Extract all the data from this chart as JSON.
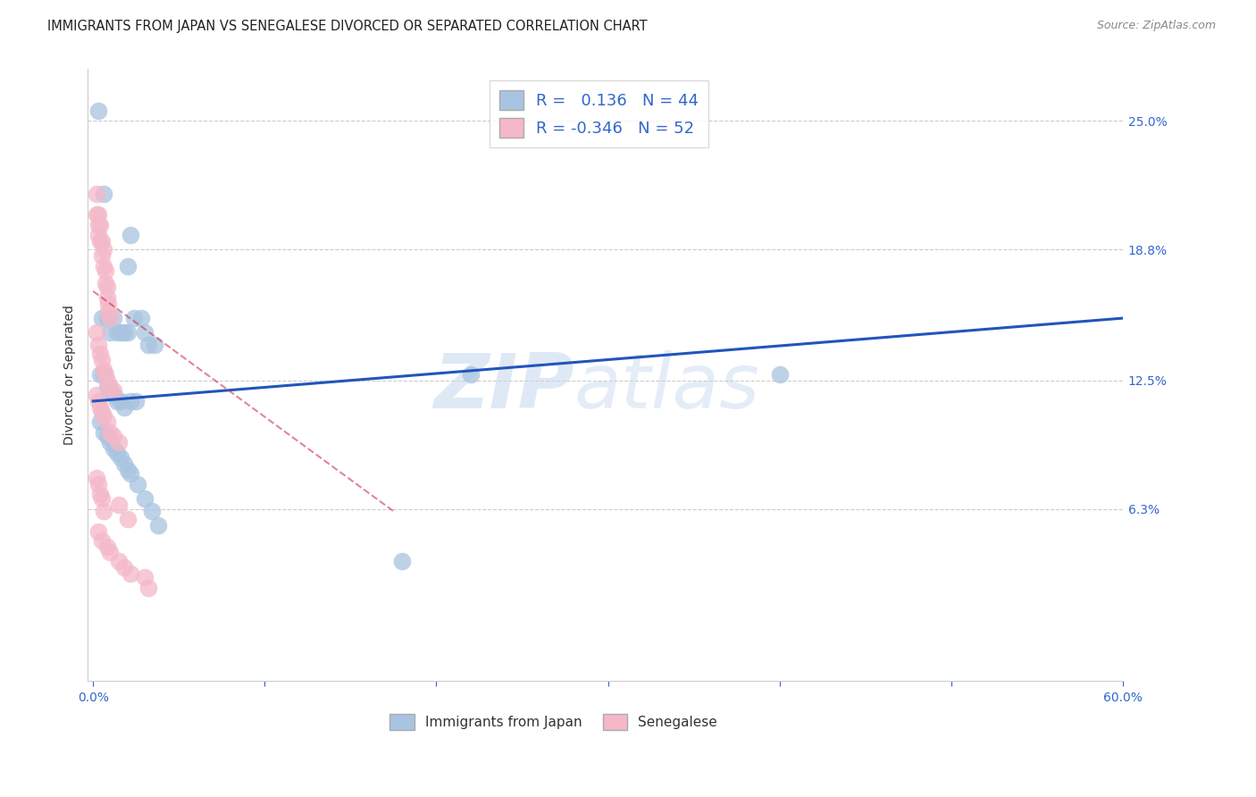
{
  "title": "IMMIGRANTS FROM JAPAN VS SENEGALESE DIVORCED OR SEPARATED CORRELATION CHART",
  "source": "Source: ZipAtlas.com",
  "ylabel": "Divorced or Separated",
  "ytick_labels": [
    "25.0%",
    "18.8%",
    "12.5%",
    "6.3%"
  ],
  "ytick_values": [
    0.25,
    0.188,
    0.125,
    0.063
  ],
  "xlim": [
    -0.003,
    0.6
  ],
  "ylim": [
    -0.02,
    0.275
  ],
  "legend_label1": "Immigrants from Japan",
  "legend_label2": "Senegalese",
  "blue_color": "#a8c4e0",
  "pink_color": "#f4b8c8",
  "blue_line_color": "#2255bb",
  "pink_line_color": "#cc3355",
  "watermark_text": "ZIP atlas",
  "blue_scatter_x": [
    0.003,
    0.006,
    0.022,
    0.02,
    0.005,
    0.008,
    0.01,
    0.012,
    0.014,
    0.016,
    0.018,
    0.02,
    0.024,
    0.028,
    0.03,
    0.032,
    0.036,
    0.004,
    0.006,
    0.008,
    0.01,
    0.012,
    0.014,
    0.016,
    0.018,
    0.022,
    0.004,
    0.006,
    0.008,
    0.01,
    0.012,
    0.014,
    0.016,
    0.018,
    0.02,
    0.022,
    0.026,
    0.03,
    0.034,
    0.038,
    0.22,
    0.4,
    0.18,
    0.025
  ],
  "blue_scatter_y": [
    0.255,
    0.215,
    0.195,
    0.18,
    0.155,
    0.155,
    0.148,
    0.155,
    0.148,
    0.148,
    0.148,
    0.148,
    0.155,
    0.155,
    0.148,
    0.142,
    0.142,
    0.128,
    0.128,
    0.122,
    0.12,
    0.118,
    0.115,
    0.115,
    0.112,
    0.115,
    0.105,
    0.1,
    0.098,
    0.095,
    0.092,
    0.09,
    0.088,
    0.085,
    0.082,
    0.08,
    0.075,
    0.068,
    0.062,
    0.055,
    0.128,
    0.128,
    0.038,
    0.115
  ],
  "pink_scatter_x": [
    0.002,
    0.002,
    0.003,
    0.003,
    0.003,
    0.004,
    0.004,
    0.005,
    0.005,
    0.006,
    0.006,
    0.007,
    0.007,
    0.008,
    0.008,
    0.009,
    0.009,
    0.01,
    0.002,
    0.003,
    0.004,
    0.005,
    0.006,
    0.007,
    0.008,
    0.01,
    0.012,
    0.002,
    0.003,
    0.004,
    0.005,
    0.006,
    0.008,
    0.01,
    0.012,
    0.015,
    0.002,
    0.003,
    0.004,
    0.005,
    0.006,
    0.015,
    0.02,
    0.003,
    0.005,
    0.008,
    0.01,
    0.015,
    0.018,
    0.022,
    0.03,
    0.032
  ],
  "pink_scatter_y": [
    0.215,
    0.205,
    0.205,
    0.2,
    0.195,
    0.2,
    0.192,
    0.192,
    0.185,
    0.188,
    0.18,
    0.178,
    0.172,
    0.17,
    0.165,
    0.162,
    0.158,
    0.155,
    0.148,
    0.142,
    0.138,
    0.135,
    0.13,
    0.128,
    0.125,
    0.122,
    0.12,
    0.118,
    0.115,
    0.112,
    0.11,
    0.108,
    0.105,
    0.1,
    0.098,
    0.095,
    0.078,
    0.075,
    0.07,
    0.068,
    0.062,
    0.065,
    0.058,
    0.052,
    0.048,
    0.045,
    0.042,
    0.038,
    0.035,
    0.032,
    0.03,
    0.025
  ],
  "blue_trend_x": [
    0.0,
    0.6
  ],
  "blue_trend_y": [
    0.115,
    0.155
  ],
  "pink_trend_x": [
    0.0,
    0.175
  ],
  "pink_trend_y": [
    0.168,
    0.062
  ]
}
